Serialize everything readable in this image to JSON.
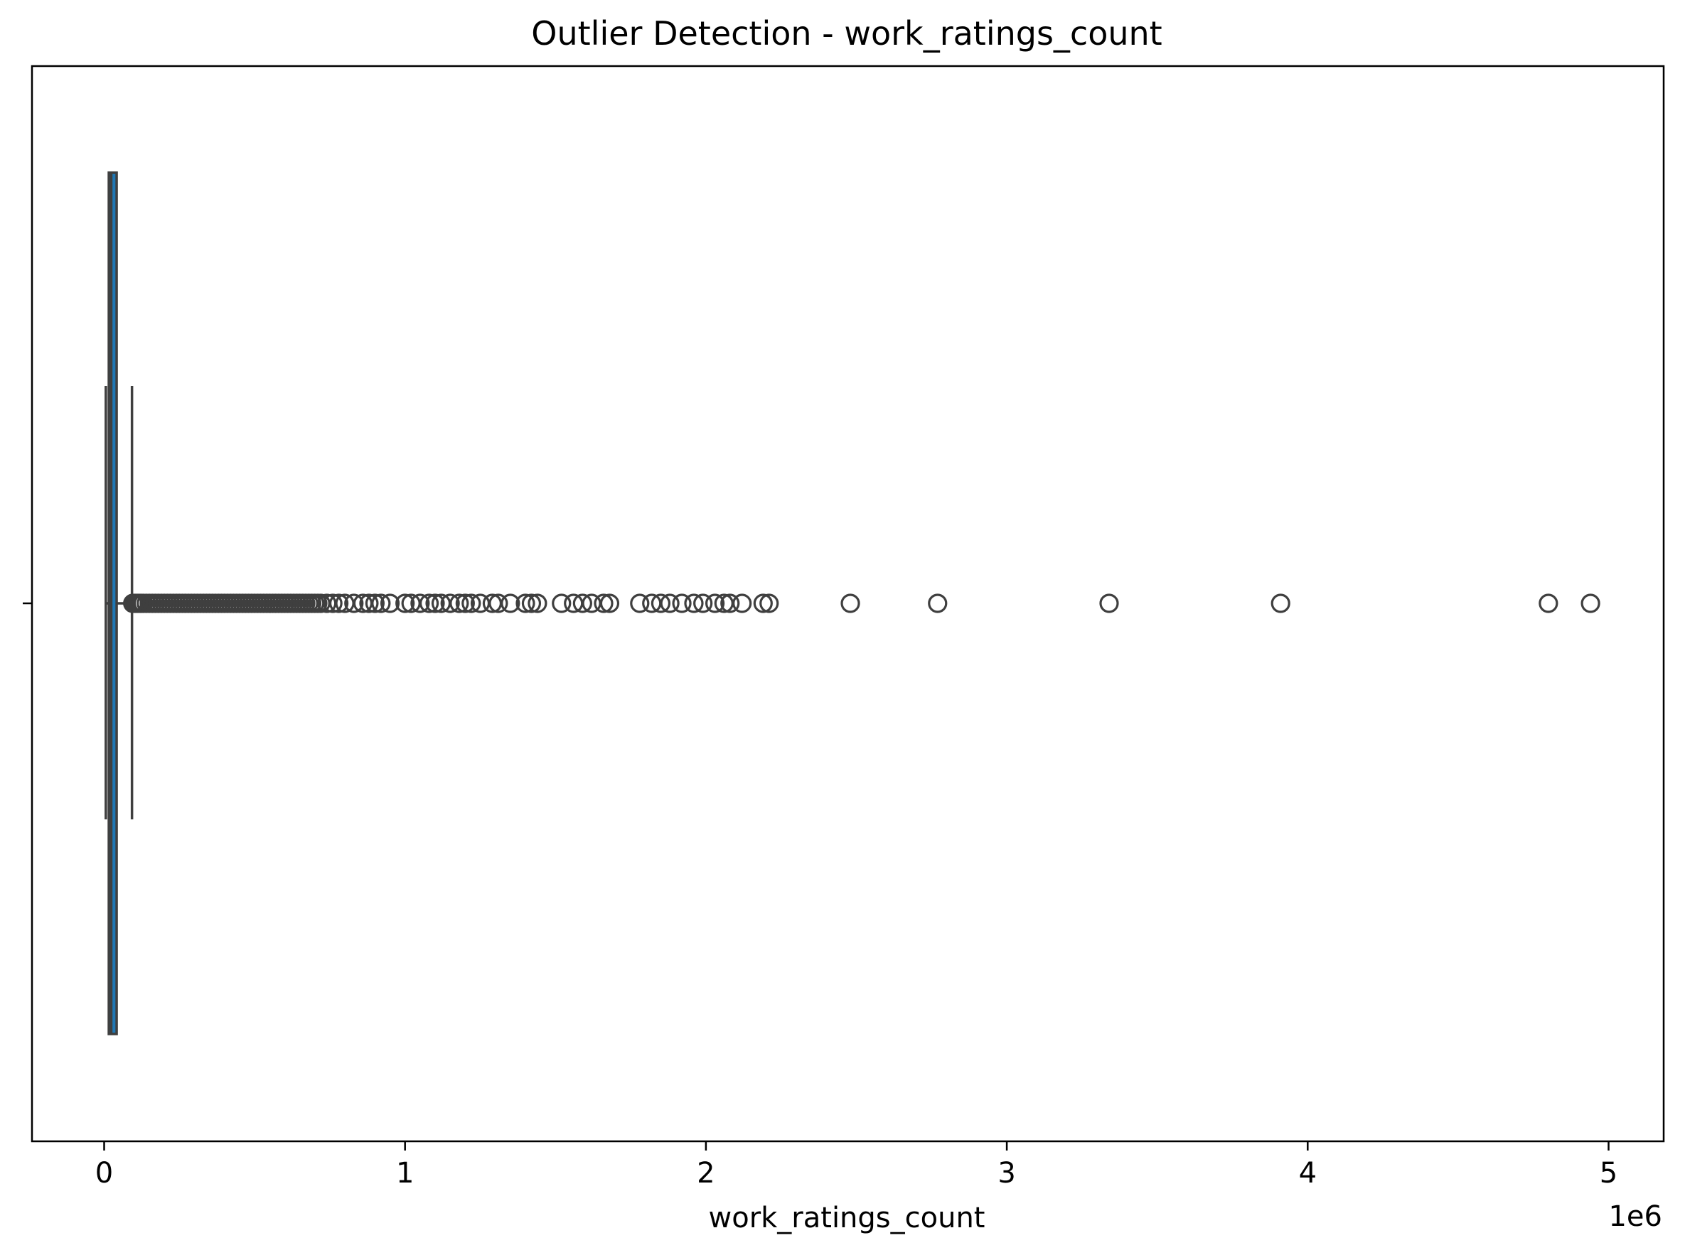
{
  "chart_data": {
    "type": "boxplot",
    "orientation": "horizontal",
    "title": "Outlier Detection - work_ratings_count",
    "xlabel": "work_ratings_count",
    "ylabel": "",
    "offset_label": "1e6",
    "xlim": [
      -0.24,
      5.2
    ],
    "x_ticks": [
      0,
      1,
      2,
      3,
      4,
      5
    ],
    "x_tick_labels": [
      "0",
      "1",
      "2",
      "3",
      "4",
      "5"
    ],
    "y_tick_labels": [
      ""
    ],
    "grid": false,
    "colors": {
      "box_fill": "#1f77b4",
      "box_edge": "#3f3f3f",
      "outlier_edge": "#3f3f3f"
    },
    "box": {
      "whisker_low": 0.0055,
      "q1": 0.0155,
      "median": 0.0235,
      "q3": 0.0415,
      "whisker_high": 0.0925
    },
    "outliers": [
      0.095,
      0.1,
      0.105,
      0.11,
      0.115,
      0.12,
      0.125,
      0.13,
      0.14,
      0.15,
      0.16,
      0.17,
      0.18,
      0.19,
      0.2,
      0.21,
      0.22,
      0.23,
      0.24,
      0.25,
      0.26,
      0.27,
      0.28,
      0.29,
      0.3,
      0.31,
      0.32,
      0.33,
      0.34,
      0.35,
      0.36,
      0.37,
      0.38,
      0.39,
      0.4,
      0.41,
      0.42,
      0.43,
      0.44,
      0.45,
      0.46,
      0.47,
      0.48,
      0.49,
      0.5,
      0.51,
      0.52,
      0.53,
      0.54,
      0.55,
      0.56,
      0.57,
      0.58,
      0.59,
      0.6,
      0.61,
      0.62,
      0.63,
      0.64,
      0.65,
      0.66,
      0.67,
      0.68,
      0.69,
      0.7,
      0.71,
      0.72,
      0.74,
      0.76,
      0.78,
      0.8,
      0.83,
      0.86,
      0.88,
      0.9,
      0.92,
      0.95,
      1.0,
      1.02,
      1.05,
      1.08,
      1.1,
      1.12,
      1.15,
      1.18,
      1.2,
      1.22,
      1.25,
      1.29,
      1.31,
      1.35,
      1.4,
      1.42,
      1.44,
      1.52,
      1.56,
      1.59,
      1.62,
      1.66,
      1.68,
      1.78,
      1.82,
      1.85,
      1.88,
      1.92,
      1.96,
      1.99,
      2.03,
      2.06,
      2.08,
      2.12,
      2.19,
      2.21,
      2.48,
      2.77,
      3.34,
      3.91,
      4.8,
      4.94
    ]
  }
}
